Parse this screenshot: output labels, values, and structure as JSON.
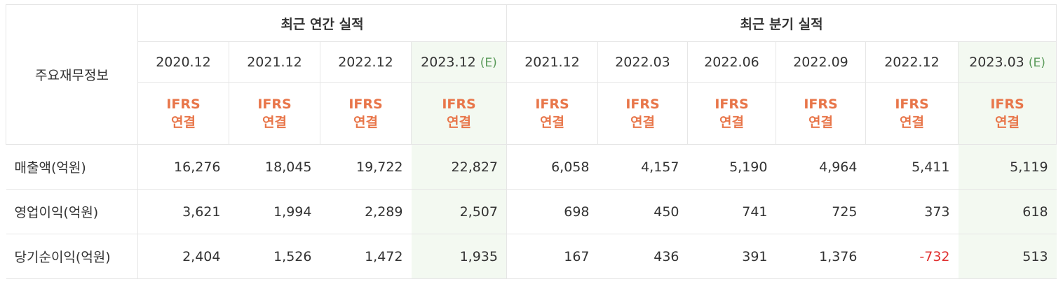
{
  "header": {
    "row_label": "주요재무정보",
    "groups": [
      {
        "label": "최근 연간 실적",
        "span": 4
      },
      {
        "label": "최근 분기 실적",
        "span": 6
      }
    ]
  },
  "columns": [
    {
      "period": "2020.12",
      "basis": "IFRS",
      "consolidation": "연결"
    },
    {
      "period": "2021.12",
      "basis": "IFRS",
      "consolidation": "연결"
    },
    {
      "period": "2022.12",
      "basis": "IFRS",
      "consolidation": "연결"
    },
    {
      "period": "2023.12",
      "estimate": "(E)",
      "basis": "IFRS",
      "consolidation": "연결"
    },
    {
      "period": "2021.12",
      "basis": "IFRS",
      "consolidation": "연결"
    },
    {
      "period": "2022.03",
      "basis": "IFRS",
      "consolidation": "연결"
    },
    {
      "period": "2022.06",
      "basis": "IFRS",
      "consolidation": "연결"
    },
    {
      "period": "2022.09",
      "basis": "IFRS",
      "consolidation": "연결"
    },
    {
      "period": "2022.12",
      "basis": "IFRS",
      "consolidation": "연결"
    },
    {
      "period": "2023.03",
      "estimate": "(E)",
      "basis": "IFRS",
      "consolidation": "연결"
    }
  ],
  "rows": [
    {
      "label": "매출액(억원)",
      "values": [
        "16,276",
        "18,045",
        "19,722",
        "22,827",
        "6,058",
        "4,157",
        "5,190",
        "4,964",
        "5,411",
        "5,119"
      ]
    },
    {
      "label": "영업이익(억원)",
      "values": [
        "3,621",
        "1,994",
        "2,289",
        "2,507",
        "698",
        "450",
        "741",
        "725",
        "373",
        "618"
      ]
    },
    {
      "label": "당기순이익(억원)",
      "values": [
        "2,404",
        "1,526",
        "1,472",
        "1,935",
        "167",
        "436",
        "391",
        "1,376",
        "-732",
        "513"
      ]
    }
  ]
}
